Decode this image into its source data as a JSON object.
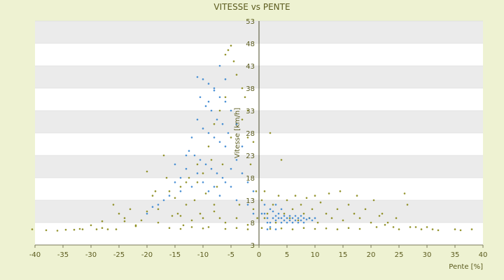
{
  "chart_data": {
    "type": "scatter",
    "title": "VITESSE vs PENTE",
    "xlabel": "Pente [%]",
    "ylabel": "Vitesse [km/h]",
    "xlim": [
      -40,
      40
    ],
    "ylim": [
      3,
      53
    ],
    "xticks": [
      -40,
      -35,
      -30,
      -25,
      -20,
      -15,
      -10,
      -5,
      0,
      5,
      10,
      15,
      20,
      25,
      30,
      35,
      40
    ],
    "yticks": [
      3,
      8,
      13,
      18,
      23,
      28,
      33,
      38,
      43,
      48,
      53
    ],
    "grid": "horizontal banded",
    "legend": "none",
    "series": [
      {
        "color": "#8a8a1a",
        "points": [
          [
            -40.5,
            6.5
          ],
          [
            -38,
            6.3
          ],
          [
            -36,
            6.2
          ],
          [
            -34.5,
            6.4
          ],
          [
            -33,
            6.4
          ],
          [
            -31.5,
            6.5
          ],
          [
            -30,
            7.4
          ],
          [
            -29,
            6.5
          ],
          [
            -28,
            8.3
          ],
          [
            -27,
            6.5
          ],
          [
            -26,
            12
          ],
          [
            -25.5,
            6.5
          ],
          [
            -25,
            10
          ],
          [
            -24,
            8.3
          ],
          [
            -23,
            11
          ],
          [
            -22,
            7.4
          ],
          [
            -21,
            8.5
          ],
          [
            -20,
            19.4
          ],
          [
            -19,
            14
          ],
          [
            -18.5,
            15
          ],
          [
            -18,
            11
          ],
          [
            -17,
            23
          ],
          [
            -16.5,
            18
          ],
          [
            -16,
            15
          ],
          [
            -15.5,
            9.5
          ],
          [
            -15,
            13.5
          ],
          [
            -14.5,
            10
          ],
          [
            -14,
            16
          ],
          [
            -13.5,
            7.4
          ],
          [
            -13,
            12
          ],
          [
            -12.5,
            18
          ],
          [
            -12,
            8.5
          ],
          [
            -11.5,
            13
          ],
          [
            -11,
            17
          ],
          [
            -10.5,
            10
          ],
          [
            -10,
            19
          ],
          [
            -9.5,
            14.5
          ],
          [
            -9,
            7
          ],
          [
            -8.5,
            22
          ],
          [
            -8,
            12
          ],
          [
            -7.5,
            16
          ],
          [
            -7,
            9
          ],
          [
            -6.5,
            21
          ],
          [
            -6,
            45.5
          ],
          [
            -5.5,
            46.5
          ],
          [
            -5,
            47.5
          ],
          [
            -4.5,
            44
          ],
          [
            -4,
            41
          ],
          [
            -3.5,
            12
          ],
          [
            -3,
            38
          ],
          [
            -2.5,
            36
          ],
          [
            -2,
            33
          ],
          [
            -1.5,
            21
          ],
          [
            -1,
            26
          ],
          [
            -0.5,
            15
          ],
          [
            -0.3,
            9
          ],
          [
            -22,
            7.2
          ],
          [
            -18,
            8
          ],
          [
            -14,
            9.5
          ],
          [
            -12,
            7
          ],
          [
            -10,
            9
          ],
          [
            -8,
            10.5
          ],
          [
            -6,
            8
          ],
          [
            -4,
            9
          ],
          [
            -2,
            7.5
          ],
          [
            -1,
            11
          ],
          [
            0.5,
            13
          ],
          [
            1,
            9
          ],
          [
            1.5,
            10
          ],
          [
            2,
            28
          ],
          [
            2.5,
            12
          ],
          [
            3,
            8
          ],
          [
            3.5,
            14
          ],
          [
            4,
            22
          ],
          [
            4.5,
            10
          ],
          [
            5,
            13
          ],
          [
            5.5,
            9
          ],
          [
            6,
            11
          ],
          [
            6.5,
            14
          ],
          [
            7,
            8.5
          ],
          [
            7.5,
            12
          ],
          [
            8,
            10
          ],
          [
            8.5,
            13.5
          ],
          [
            9,
            9
          ],
          [
            9.5,
            11
          ],
          [
            10,
            14
          ],
          [
            10.5,
            8
          ],
          [
            11,
            12.5
          ],
          [
            12,
            10
          ],
          [
            12.5,
            14.5
          ],
          [
            13,
            9
          ],
          [
            14,
            11
          ],
          [
            14.5,
            15
          ],
          [
            15,
            8.5
          ],
          [
            16,
            12
          ],
          [
            17,
            10
          ],
          [
            17.5,
            14
          ],
          [
            18,
            9
          ],
          [
            19,
            11
          ],
          [
            20,
            8
          ],
          [
            20.5,
            13
          ],
          [
            21,
            7
          ],
          [
            21.5,
            9.5
          ],
          [
            22,
            10
          ],
          [
            22.5,
            7.5
          ],
          [
            23,
            8
          ],
          [
            24,
            7
          ],
          [
            24.5,
            9
          ],
          [
            25,
            6.5
          ],
          [
            26,
            14.5
          ],
          [
            26.5,
            12
          ],
          [
            27,
            7
          ],
          [
            28,
            7
          ],
          [
            29,
            6.5
          ],
          [
            30,
            7
          ],
          [
            31,
            6.5
          ],
          [
            32,
            6.3
          ],
          [
            35,
            6.5
          ],
          [
            36,
            6.3
          ],
          [
            38,
            6.5
          ],
          [
            -16,
            6.8
          ],
          [
            -14,
            6.6
          ],
          [
            -10,
            6.7
          ],
          [
            -6,
            6.6
          ],
          [
            -4,
            6.8
          ],
          [
            -2,
            6.5
          ],
          [
            0.5,
            6.8
          ],
          [
            2,
            6.6
          ],
          [
            4,
            6.7
          ],
          [
            6,
            6.5
          ],
          [
            8,
            6.8
          ],
          [
            10,
            6.6
          ],
          [
            12,
            6.7
          ],
          [
            14,
            6.5
          ],
          [
            16,
            6.8
          ],
          [
            18,
            6.6
          ],
          [
            -8,
            30
          ],
          [
            -7,
            33
          ],
          [
            -6,
            36
          ],
          [
            -5,
            27
          ],
          [
            -9,
            25
          ],
          [
            -11,
            21
          ],
          [
            -13,
            17
          ],
          [
            -3,
            31
          ],
          [
            -2,
            27
          ],
          [
            1,
            15
          ],
          [
            -20,
            10.5
          ],
          [
            -24,
            9
          ],
          [
            -28,
            6.8
          ],
          [
            -32,
            6.6
          ]
        ]
      },
      {
        "color": "#3a86d0",
        "points": [
          [
            -11,
            40.5
          ],
          [
            -10,
            40
          ],
          [
            -9,
            39
          ],
          [
            -8,
            37.5
          ],
          [
            -7,
            36
          ],
          [
            -6,
            35
          ],
          [
            -10.5,
            36
          ],
          [
            -9.5,
            34
          ],
          [
            -8.5,
            33
          ],
          [
            -7.5,
            31
          ],
          [
            -6.5,
            30
          ],
          [
            -5.5,
            28
          ],
          [
            -11,
            31
          ],
          [
            -10,
            29
          ],
          [
            -9,
            28
          ],
          [
            -8,
            27
          ],
          [
            -7,
            26
          ],
          [
            -6,
            25
          ],
          [
            -12,
            27
          ],
          [
            -12.5,
            24
          ],
          [
            -11.5,
            23
          ],
          [
            -10.5,
            22
          ],
          [
            -9.5,
            21
          ],
          [
            -8.5,
            20
          ],
          [
            -7.5,
            19
          ],
          [
            -6.5,
            18
          ],
          [
            -13,
            20
          ],
          [
            -14,
            18
          ],
          [
            -15,
            17
          ],
          [
            -16,
            14
          ],
          [
            -17,
            13
          ],
          [
            -18,
            12
          ],
          [
            -20,
            10
          ],
          [
            -19,
            11.5
          ],
          [
            -14,
            15
          ],
          [
            -12,
            16
          ],
          [
            -10,
            17
          ],
          [
            -8,
            16
          ],
          [
            -6,
            17
          ],
          [
            -5,
            20
          ],
          [
            -4,
            22
          ],
          [
            -3,
            19
          ],
          [
            -2,
            17
          ],
          [
            -1,
            15
          ],
          [
            -4,
            30
          ],
          [
            -5,
            33
          ],
          [
            -3,
            25
          ],
          [
            -6,
            40
          ],
          [
            -7,
            43
          ],
          [
            -8,
            38
          ],
          [
            -9,
            35
          ],
          [
            -13,
            23
          ],
          [
            -15,
            21
          ],
          [
            -11,
            19
          ],
          [
            -9,
            15
          ],
          [
            -7,
            14
          ],
          [
            -5,
            16
          ],
          [
            -4,
            13
          ],
          [
            -2,
            12
          ],
          [
            -1,
            10
          ],
          [
            1,
            10
          ],
          [
            1.5,
            9
          ],
          [
            2,
            11
          ],
          [
            2.5,
            10.5
          ],
          [
            3,
            9.5
          ],
          [
            3.5,
            10
          ],
          [
            4,
            9
          ],
          [
            4.5,
            8.5
          ],
          [
            5,
            9
          ],
          [
            5.5,
            8.5
          ],
          [
            6,
            9
          ],
          [
            6.5,
            8.5
          ],
          [
            7,
            9
          ],
          [
            7.5,
            8.5
          ],
          [
            8,
            9
          ],
          [
            8.5,
            8.7
          ],
          [
            9,
            9
          ],
          [
            2,
            8
          ],
          [
            3,
            8.5
          ],
          [
            4,
            8
          ],
          [
            5,
            8
          ],
          [
            6,
            8
          ],
          [
            7,
            8
          ],
          [
            8,
            8
          ],
          [
            1.5,
            8
          ],
          [
            2.5,
            9
          ],
          [
            3.5,
            9
          ],
          [
            4.5,
            9.5
          ],
          [
            5.5,
            9.5
          ],
          [
            6.5,
            9.5
          ],
          [
            7.5,
            9.5
          ],
          [
            9.5,
            8.5
          ],
          [
            10,
            9
          ],
          [
            3,
            12
          ],
          [
            4,
            11
          ],
          [
            1,
            12
          ],
          [
            0.5,
            10
          ],
          [
            2,
            7
          ],
          [
            3,
            6.5
          ],
          [
            1.5,
            6.5
          ]
        ]
      }
    ]
  }
}
